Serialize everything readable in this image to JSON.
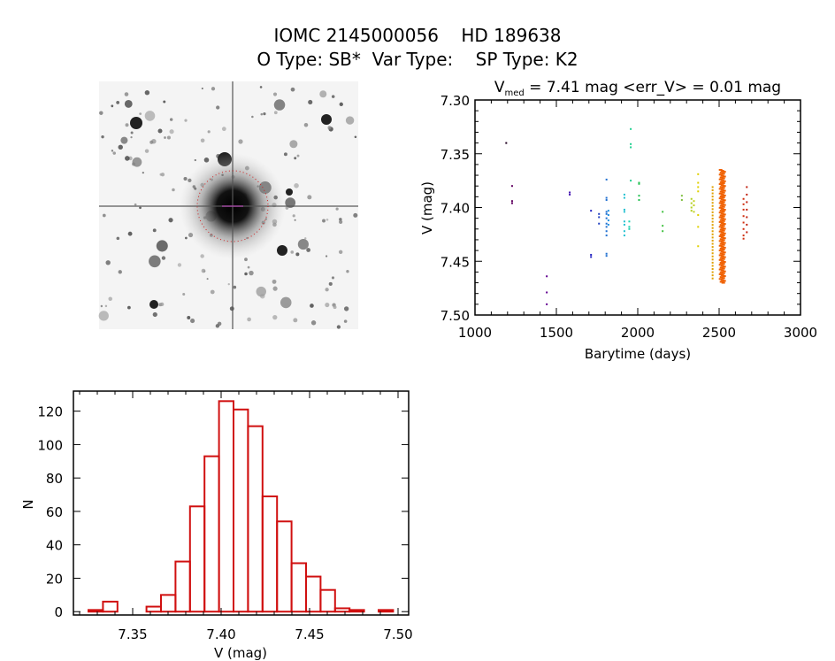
{
  "header": {
    "title": "IOMC 2145000056    HD 189638",
    "subtitle": "O Type: SB*  Var Type:    SP Type: K2"
  },
  "chart_data": [
    {
      "type": "scatter",
      "title_prefix": "V",
      "title_sub": "med",
      "title_rest": " = 7.41 mag <err_V> = 0.01 mag",
      "xlabel": "Barytime (days)",
      "ylabel": "V (mag)",
      "xlim": [
        1000,
        3000
      ],
      "ylim": [
        7.3,
        7.5
      ],
      "y_inverted": true,
      "xticks": [
        1000,
        1500,
        2000,
        2500,
        3000
      ],
      "xtick_labels": [
        "1000",
        "1500",
        "2000",
        "2500",
        "3000"
      ],
      "yticks": [
        7.3,
        7.35,
        7.4,
        7.45,
        7.5
      ],
      "ytick_labels": [
        "7.30",
        "7.35",
        "7.40",
        "7.45",
        "7.50"
      ],
      "groups": [
        {
          "x": 1192,
          "color": "#200020",
          "y": [
            7.34
          ]
        },
        {
          "x": 1228,
          "color": "#600060",
          "y": [
            7.38,
            7.394,
            7.396
          ]
        },
        {
          "x": 1441,
          "color": "#600090",
          "y": [
            7.464,
            7.479,
            7.49
          ]
        },
        {
          "x": 1582,
          "color": "#4010b0",
          "y": [
            7.386,
            7.388
          ]
        },
        {
          "x": 1713,
          "color": "#2020c0",
          "y": [
            7.403,
            7.444,
            7.446
          ]
        },
        {
          "x": 1762,
          "color": "#2040c0",
          "y": [
            7.406,
            7.409,
            7.415
          ]
        },
        {
          "x": 1808,
          "color": "#2070d0",
          "y": [
            7.374,
            7.391,
            7.393,
            7.404,
            7.406,
            7.41,
            7.415,
            7.418,
            7.422,
            7.426,
            7.443,
            7.445
          ]
        },
        {
          "x": 1820,
          "color": "#2090e0",
          "y": [
            7.403,
            7.407,
            7.412,
            7.416
          ]
        },
        {
          "x": 1918,
          "color": "#20c0d0",
          "y": [
            7.388,
            7.391,
            7.402,
            7.404,
            7.413,
            7.416,
            7.422,
            7.426
          ]
        },
        {
          "x": 1948,
          "color": "#20d0b0",
          "y": [
            7.413,
            7.418,
            7.42
          ]
        },
        {
          "x": 1957,
          "color": "#20d090",
          "y": [
            7.327,
            7.341,
            7.344,
            7.375
          ]
        },
        {
          "x": 2008,
          "color": "#20c050",
          "y": [
            7.377,
            7.378,
            7.389,
            7.393
          ]
        },
        {
          "x": 2153,
          "color": "#40c040",
          "y": [
            7.404,
            7.417,
            7.422
          ]
        },
        {
          "x": 2271,
          "color": "#80c040",
          "y": [
            7.389,
            7.393
          ]
        },
        {
          "x": 2330,
          "color": "#b0d020",
          "y": [
            7.392,
            7.396,
            7.4,
            7.403
          ]
        },
        {
          "x": 2345,
          "color": "#c0d020",
          "y": [
            7.394,
            7.398,
            7.404
          ]
        },
        {
          "x": 2371,
          "color": "#e0d000",
          "y": [
            7.369,
            7.377,
            7.381,
            7.385,
            7.407,
            7.418,
            7.436
          ]
        },
        {
          "x": 2460,
          "color": "#e0a000",
          "dense_range": [
            7.381,
            7.466
          ],
          "n": 30
        },
        {
          "x": 2520,
          "color": "#f06000",
          "dense_range": [
            7.365,
            7.47
          ],
          "n": 120
        },
        {
          "x": 2650,
          "color": "#d03010",
          "y": [
            7.392,
            7.397,
            7.402,
            7.408,
            7.414,
            7.42,
            7.426,
            7.429
          ]
        },
        {
          "x": 2670,
          "color": "#c02010",
          "y": [
            7.381,
            7.388,
            7.395,
            7.402,
            7.409,
            7.416,
            7.423
          ]
        }
      ]
    },
    {
      "type": "bar",
      "style": "histogram-outline",
      "xlabel": "V (mag)",
      "ylabel": "N",
      "xlim": [
        7.3165,
        7.506
      ],
      "ylim": [
        -2,
        132
      ],
      "xticks": [
        7.35,
        7.4,
        7.45,
        7.5
      ],
      "xtick_labels": [
        "7.35",
        "7.40",
        "7.45",
        "7.50"
      ],
      "yticks": [
        0,
        20,
        40,
        60,
        80,
        100,
        120
      ],
      "ytick_labels": [
        "0",
        "20",
        "40",
        "60",
        "80",
        "100",
        "120"
      ],
      "bin_start": 7.325,
      "bin_width": 0.0082,
      "values": [
        1,
        6,
        0,
        0,
        3,
        10,
        30,
        63,
        93,
        126,
        121,
        111,
        69,
        54,
        29,
        21,
        13,
        2,
        1,
        0,
        1
      ],
      "color": "#d01010"
    }
  ],
  "sky_image": {
    "circle_color": "#d02020",
    "marker_color": "#c040c0"
  }
}
